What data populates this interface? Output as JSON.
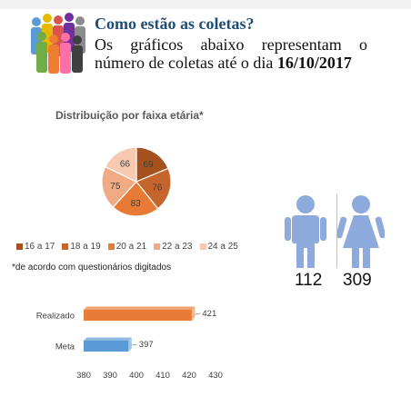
{
  "header": {
    "title": "Como estão as coletas?",
    "description": "Os gráficos abaixo representam o número de coletas até o dia",
    "date": "16/10/2017"
  },
  "footnote": "*de acordo com questionários digitados",
  "gender": {
    "male_count": "112",
    "female_count": "309",
    "male_color": "#8ea9db",
    "female_color": "#8ea9db"
  },
  "chart_data": [
    {
      "type": "pie",
      "title": "Distribuição por faixa etária*",
      "categories": [
        "16 a 17",
        "18 a 19",
        "20 a 21",
        "22 a 23",
        "24 a 25"
      ],
      "values": [
        69,
        76,
        83,
        75,
        66
      ],
      "colors": [
        "#a4511d",
        "#c5652b",
        "#e77b36",
        "#f0aa84",
        "#f6c9b0"
      ],
      "legend": "bottom"
    },
    {
      "type": "bar",
      "orientation": "horizontal",
      "categories": [
        "Realizado",
        "Meta"
      ],
      "values": [
        421,
        397
      ],
      "colors": [
        "#e87b35",
        "#5b9bd5"
      ],
      "xlim": [
        380,
        430
      ],
      "xticks": [
        380,
        390,
        400,
        410,
        420,
        430
      ],
      "grid": false
    }
  ]
}
